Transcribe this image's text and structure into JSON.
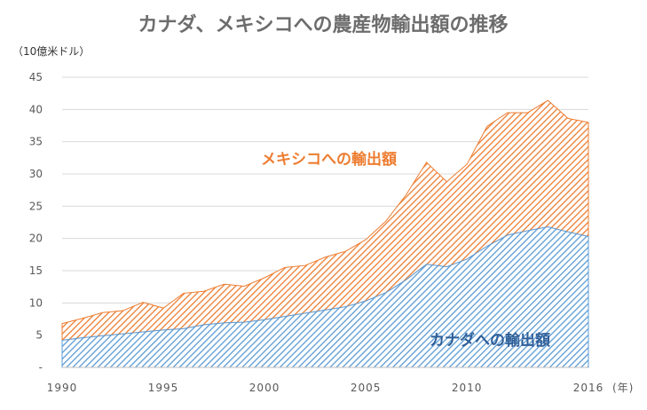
{
  "chart_data": {
    "type": "area",
    "stacked": true,
    "title": "カナダ、メキシコへの農産物輸出額の推移",
    "ylabel": "（10億米ドル）",
    "xlabel": "(年)",
    "ylim": [
      0,
      45
    ],
    "yticks": [
      0,
      5,
      10,
      15,
      20,
      25,
      30,
      35,
      40,
      45
    ],
    "ytick_labels": [
      "-",
      "5",
      "10",
      "15",
      "20",
      "25",
      "30",
      "35",
      "40",
      "45"
    ],
    "xticks": [
      1990,
      1995,
      2000,
      2005,
      2010,
      2016
    ],
    "xtick_labels": [
      "1990",
      "1995",
      "2000",
      "2005",
      "2010",
      "2016"
    ],
    "xlim": [
      1990,
      2016
    ],
    "grid": true,
    "x": [
      1990,
      1991,
      1992,
      1993,
      1994,
      1995,
      1996,
      1997,
      1998,
      1999,
      2000,
      2001,
      2002,
      2003,
      2004,
      2005,
      2006,
      2007,
      2008,
      2009,
      2010,
      2011,
      2012,
      2013,
      2014,
      2015,
      2016
    ],
    "series": [
      {
        "name": "カナダへの輸出額",
        "color": "#5b9bd5",
        "values": [
          4.2,
          4.6,
          4.9,
          5.2,
          5.5,
          5.8,
          6.0,
          6.6,
          6.9,
          7.0,
          7.4,
          7.9,
          8.4,
          8.9,
          9.4,
          10.3,
          11.6,
          13.6,
          16.0,
          15.6,
          16.8,
          18.8,
          20.5,
          21.2,
          21.8,
          21.0,
          20.3
        ]
      },
      {
        "name": "メキシコへの輸出額",
        "color": "#ed7d31",
        "values": [
          2.6,
          3.0,
          3.6,
          3.6,
          4.6,
          3.4,
          5.5,
          5.2,
          6.0,
          5.6,
          6.5,
          7.6,
          7.4,
          8.2,
          8.6,
          9.5,
          11.1,
          13.2,
          15.8,
          13.2,
          14.7,
          18.6,
          19.0,
          18.3,
          19.6,
          17.6,
          17.7
        ]
      }
    ]
  }
}
